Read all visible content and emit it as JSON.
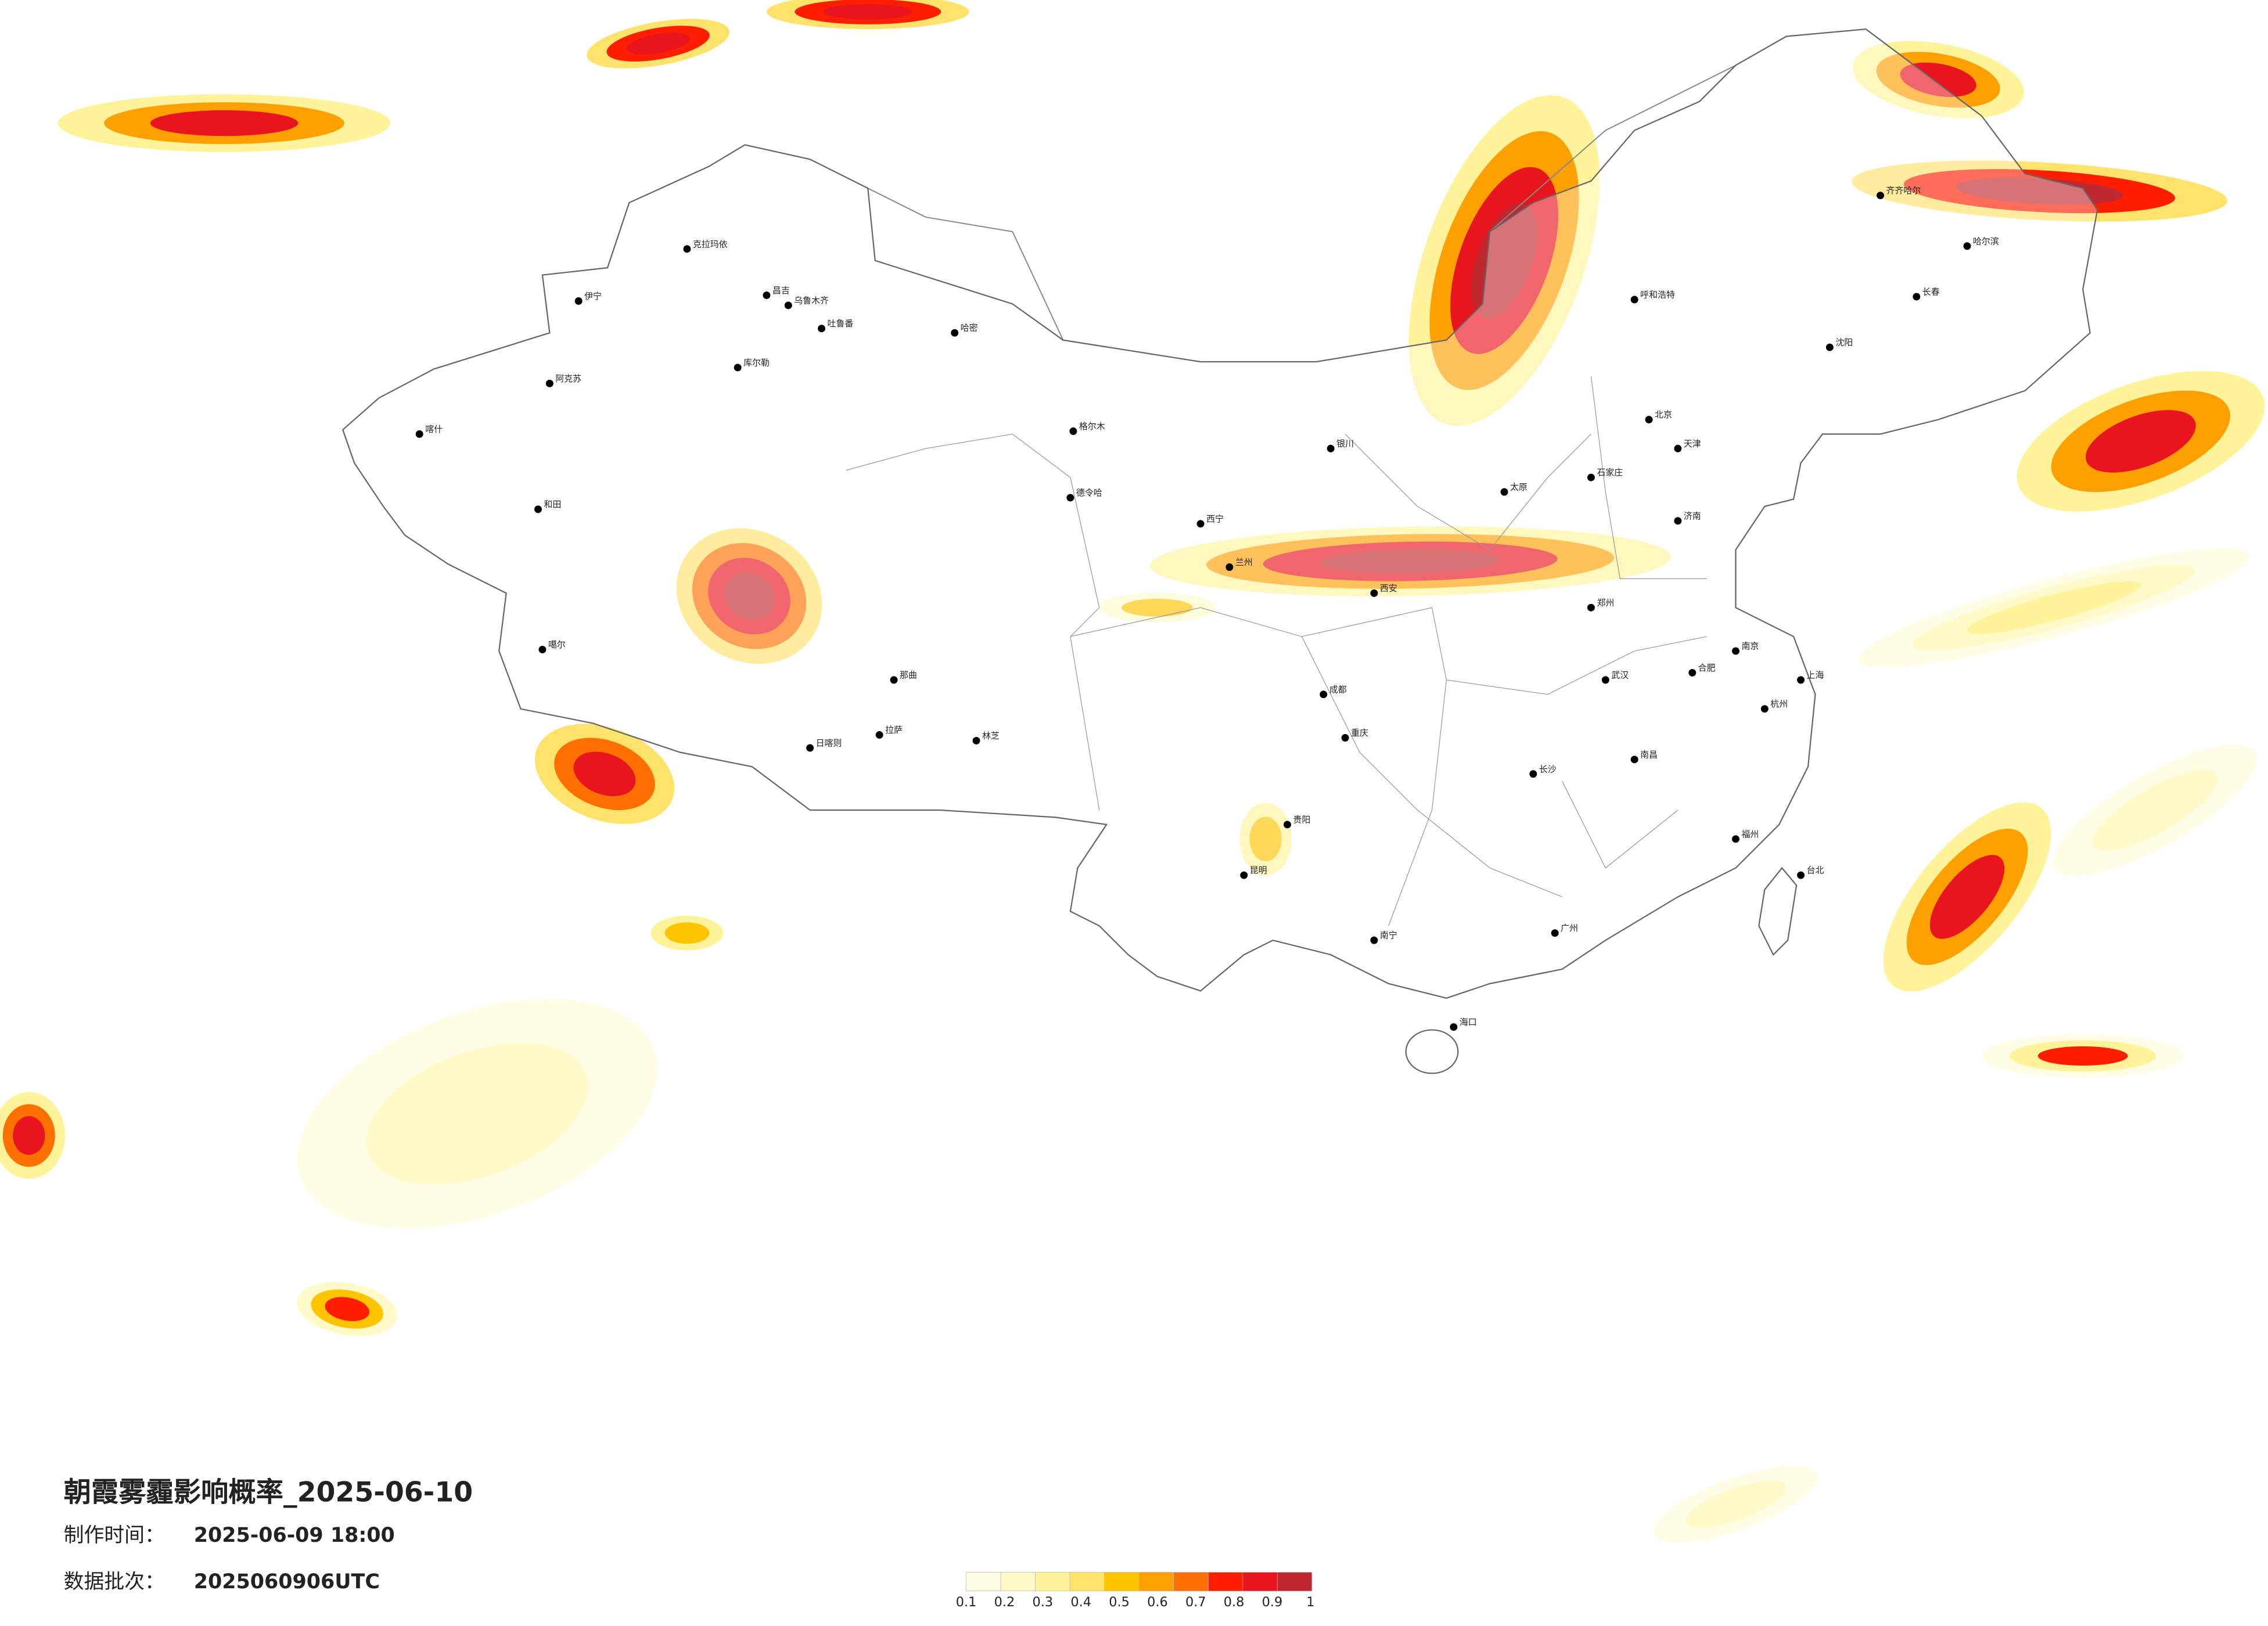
{
  "title": "朝霞雾霾影响概率_2025-06-10",
  "issue": {
    "label": "制作时间：",
    "value": "2025-06-09 18:00"
  },
  "batch": {
    "label": "数据批次：",
    "value": "2025060906UTC"
  },
  "colorbar": {
    "colors": [
      "#fffde6",
      "#fffac8",
      "#fff39a",
      "#ffe26a",
      "#ffc400",
      "#ffa000",
      "#ff7000",
      "#ff1e00",
      "#e8141e",
      "#c0282f"
    ],
    "ticks": [
      0.1,
      0.2,
      0.3,
      0.4,
      0.5,
      0.6,
      0.7,
      0.8,
      0.9,
      1
    ]
  },
  "cities": [
    "克拉玛依",
    "昌吉",
    "乌鲁木齐",
    "吐鲁番",
    "哈密",
    "库尔勒",
    "阿克苏",
    "喀什",
    "和田",
    "伊宁",
    "噶尔",
    "日喀则",
    "拉萨",
    "那曲",
    "林芝",
    "格尔木",
    "德令哈",
    "西宁",
    "兰州",
    "银川",
    "呼和浩特",
    "北京",
    "天津",
    "石家庄",
    "太原",
    "济南",
    "郑州",
    "西安",
    "成都",
    "重庆",
    "贵阳",
    "昆明",
    "南宁",
    "长沙",
    "武汉",
    "南昌",
    "合肥",
    "南京",
    "上海",
    "杭州",
    "福州",
    "广州",
    "海口",
    "台北",
    "沈阳",
    "长春",
    "哈尔滨",
    "齐齐哈尔"
  ]
}
